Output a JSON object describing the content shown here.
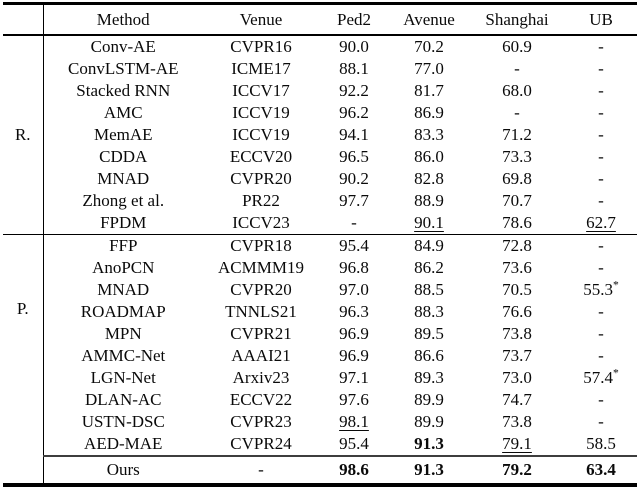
{
  "table": {
    "headers": {
      "group": "",
      "method": "Method",
      "venue": "Venue",
      "ped2": "Ped2",
      "avenue": "Avenue",
      "shanghai": "Shanghai",
      "ub": "UB"
    },
    "groups": [
      {
        "label": "R.",
        "rows": [
          {
            "method": "Conv-AE",
            "venue": "CVPR16",
            "values": [
              {
                "t": "90.0"
              },
              {
                "t": "70.2"
              },
              {
                "t": "60.9"
              },
              {
                "t": "-"
              }
            ]
          },
          {
            "method": "ConvLSTM-AE",
            "venue": "ICME17",
            "values": [
              {
                "t": "88.1"
              },
              {
                "t": "77.0"
              },
              {
                "t": "-"
              },
              {
                "t": "-"
              }
            ]
          },
          {
            "method": "Stacked RNN",
            "venue": "ICCV17",
            "values": [
              {
                "t": "92.2"
              },
              {
                "t": "81.7"
              },
              {
                "t": "68.0"
              },
              {
                "t": "-"
              }
            ]
          },
          {
            "method": "AMC",
            "venue": "ICCV19",
            "values": [
              {
                "t": "96.2"
              },
              {
                "t": "86.9"
              },
              {
                "t": "-"
              },
              {
                "t": "-"
              }
            ]
          },
          {
            "method": "MemAE",
            "venue": "ICCV19",
            "values": [
              {
                "t": "94.1"
              },
              {
                "t": "83.3"
              },
              {
                "t": "71.2"
              },
              {
                "t": "-"
              }
            ]
          },
          {
            "method": "CDDA",
            "venue": "ECCV20",
            "values": [
              {
                "t": "96.5"
              },
              {
                "t": "86.0"
              },
              {
                "t": "73.3"
              },
              {
                "t": "-"
              }
            ]
          },
          {
            "method": "MNAD",
            "venue": "CVPR20",
            "values": [
              {
                "t": "90.2"
              },
              {
                "t": "82.8"
              },
              {
                "t": "69.8"
              },
              {
                "t": "-"
              }
            ]
          },
          {
            "method": "Zhong et al.",
            "venue": "PR22",
            "values": [
              {
                "t": "97.7"
              },
              {
                "t": "88.9"
              },
              {
                "t": "70.7"
              },
              {
                "t": "-"
              }
            ]
          },
          {
            "method": "FPDM",
            "venue": "ICCV23",
            "values": [
              {
                "t": "-"
              },
              {
                "t": "90.1",
                "u": true
              },
              {
                "t": "78.6"
              },
              {
                "t": "62.7",
                "u": true
              }
            ]
          }
        ]
      },
      {
        "label": "P.",
        "rows": [
          {
            "method": "FFP",
            "venue": "CVPR18",
            "values": [
              {
                "t": "95.4"
              },
              {
                "t": "84.9"
              },
              {
                "t": "72.8"
              },
              {
                "t": "-"
              }
            ]
          },
          {
            "method": "AnoPCN",
            "venue": "ACMMM19",
            "values": [
              {
                "t": "96.8"
              },
              {
                "t": "86.2"
              },
              {
                "t": "73.6"
              },
              {
                "t": "-"
              }
            ]
          },
          {
            "method": "MNAD",
            "venue": "CVPR20",
            "values": [
              {
                "t": "97.0"
              },
              {
                "t": "88.5"
              },
              {
                "t": "70.5"
              },
              {
                "t": "55.3",
                "sup": "*"
              }
            ]
          },
          {
            "method": "ROADMAP",
            "venue": "TNNLS21",
            "values": [
              {
                "t": "96.3"
              },
              {
                "t": "88.3"
              },
              {
                "t": "76.6"
              },
              {
                "t": "-"
              }
            ]
          },
          {
            "method": "MPN",
            "venue": "CVPR21",
            "values": [
              {
                "t": "96.9"
              },
              {
                "t": "89.5"
              },
              {
                "t": "73.8"
              },
              {
                "t": "-"
              }
            ]
          },
          {
            "method": "AMMC-Net",
            "venue": "AAAI21",
            "values": [
              {
                "t": "96.9"
              },
              {
                "t": "86.6"
              },
              {
                "t": "73.7"
              },
              {
                "t": "-"
              }
            ]
          },
          {
            "method": "LGN-Net",
            "venue": "Arxiv23",
            "values": [
              {
                "t": "97.1"
              },
              {
                "t": "89.3"
              },
              {
                "t": "73.0"
              },
              {
                "t": "57.4",
                "sup": "*"
              }
            ]
          },
          {
            "method": "DLAN-AC",
            "venue": "ECCV22",
            "values": [
              {
                "t": "97.6"
              },
              {
                "t": "89.9"
              },
              {
                "t": "74.7"
              },
              {
                "t": "-"
              }
            ]
          },
          {
            "method": "USTN-DSC",
            "venue": "CVPR23",
            "values": [
              {
                "t": "98.1",
                "u": true
              },
              {
                "t": "89.9"
              },
              {
                "t": "73.8"
              },
              {
                "t": "-"
              }
            ]
          },
          {
            "method": "AED-MAE",
            "venue": "CVPR24",
            "values": [
              {
                "t": "95.4"
              },
              {
                "t": "91.3",
                "b": true
              },
              {
                "t": "79.1",
                "u": true
              },
              {
                "t": "58.5"
              }
            ]
          }
        ]
      }
    ],
    "ours": {
      "method": "Ours",
      "venue": "-",
      "values": [
        {
          "t": "98.6",
          "b": true
        },
        {
          "t": "91.3",
          "b": true
        },
        {
          "t": "79.2",
          "b": true
        },
        {
          "t": "63.4",
          "b": true
        }
      ]
    }
  }
}
